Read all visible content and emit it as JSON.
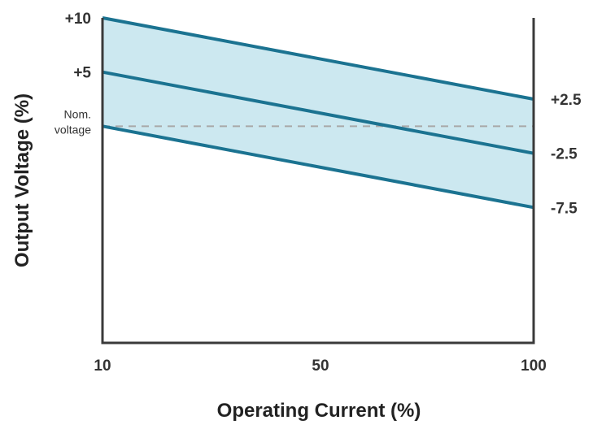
{
  "chart_data": {
    "type": "line",
    "xlabel": "Operating Current (%)",
    "ylabel": "Output Voltage (%)",
    "x_ticks": [
      "10",
      "50",
      "100"
    ],
    "y_ticks_left": [
      {
        "value": 10,
        "label": "+10"
      },
      {
        "value": 5,
        "label": "+5"
      },
      {
        "value": 0,
        "label_lines": [
          "Nom.",
          "voltage"
        ]
      }
    ],
    "y_ticks_right": [
      {
        "value": 2.5,
        "label": "+2.5"
      },
      {
        "value": -2.5,
        "label": "-2.5"
      },
      {
        "value": -7.5,
        "label": "-7.5"
      }
    ],
    "xlim": [
      10,
      100
    ],
    "ylim": [
      -20,
      10
    ],
    "series": [
      {
        "x": [
          10,
          100
        ],
        "y": [
          10,
          2.5
        ]
      },
      {
        "x": [
          10,
          100
        ],
        "y": [
          5,
          -2.5
        ]
      },
      {
        "x": [
          10,
          100
        ],
        "y": [
          0,
          -7.5
        ]
      }
    ],
    "reference_line": {
      "y": 0,
      "style": "dashed"
    },
    "band": {
      "upper_series": 0,
      "lower_series": 2
    },
    "colors": {
      "line": "#1b7391",
      "band": "#cce8f0",
      "axis": "#3a3a3a",
      "reference": "#a8a8a8"
    }
  }
}
